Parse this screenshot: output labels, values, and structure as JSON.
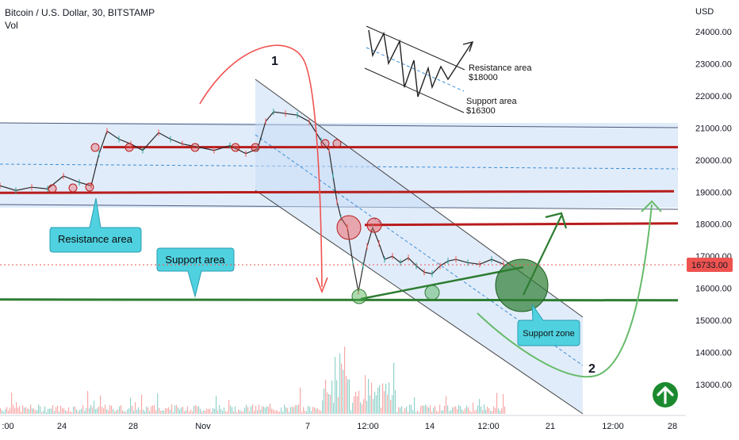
{
  "header": {
    "symbol_line": "Bitcoin / U.S. Dollar, 30, BITSTAMP",
    "volume_label": "Vol"
  },
  "chart_data": {
    "type": "line",
    "title": "Bitcoin / U.S. Dollar, 30, BITSTAMP",
    "currency_label": "USD",
    "ylim": [
      12300,
      24700
    ],
    "y_ticks": [
      13000,
      14000,
      15000,
      16000,
      17000,
      18000,
      19000,
      20000,
      21000,
      22000,
      23000,
      24000
    ],
    "x_tick_labels": [
      ":00",
      "24",
      "28",
      "Nov",
      "7",
      "12:00",
      "14",
      "12:00",
      "21",
      "12:00",
      "28"
    ],
    "current_price": 16733.0,
    "current_price_label": "16733.00",
    "price_path": [
      [
        0,
        19200
      ],
      [
        20,
        19050
      ],
      [
        40,
        19150
      ],
      [
        60,
        19100
      ],
      [
        80,
        19500
      ],
      [
        100,
        19300
      ],
      [
        115,
        19200
      ],
      [
        125,
        20200
      ],
      [
        135,
        20900
      ],
      [
        150,
        20650
      ],
      [
        165,
        20500
      ],
      [
        180,
        20300
      ],
      [
        200,
        20850
      ],
      [
        215,
        20650
      ],
      [
        230,
        20500
      ],
      [
        250,
        20400
      ],
      [
        270,
        20300
      ],
      [
        290,
        20450
      ],
      [
        310,
        20200
      ],
      [
        325,
        20350
      ],
      [
        335,
        21200
      ],
      [
        345,
        21500
      ],
      [
        360,
        21450
      ],
      [
        375,
        21400
      ],
      [
        390,
        21200
      ],
      [
        405,
        20600
      ],
      [
        415,
        20300
      ],
      [
        420,
        19500
      ],
      [
        425,
        18700
      ],
      [
        430,
        18200
      ],
      [
        438,
        17900
      ],
      [
        445,
        16800
      ],
      [
        452,
        15900
      ],
      [
        458,
        16700
      ],
      [
        463,
        17300
      ],
      [
        470,
        17900
      ],
      [
        478,
        17400
      ],
      [
        485,
        16900
      ],
      [
        495,
        17000
      ],
      [
        505,
        16800
      ],
      [
        515,
        16950
      ],
      [
        525,
        16700
      ],
      [
        535,
        16500
      ],
      [
        545,
        16450
      ],
      [
        555,
        16700
      ],
      [
        565,
        16850
      ],
      [
        575,
        16900
      ],
      [
        590,
        16800
      ],
      [
        605,
        16750
      ],
      [
        620,
        16900
      ],
      [
        635,
        16750
      ]
    ],
    "annotations": {
      "resistance_label": "Resistance area",
      "support_label": "Support area",
      "support_zone_label": "Support zone",
      "mini_resistance": "Resistance area",
      "mini_resistance_price": "$18000",
      "mini_support": "Support area",
      "mini_support_price": "$16300",
      "arc_number_1": "1",
      "arc_number_2": "2"
    },
    "levels": {
      "resistance_upper": 20400,
      "resistance_mid": 19000,
      "resistance_lower": 18000,
      "support": 15650
    },
    "colors": {
      "candle_up": "#26a69a",
      "candle_down": "#ef5350",
      "channel_fill": "#c9dcf5",
      "resistance_line": "#b71c1c",
      "support_line": "#2e7d32",
      "callout_fill": "#4fd1e0",
      "arrow_red": "#ef5350",
      "arrow_green_dark": "#2e7d32",
      "arrow_green_light": "#66bb6a",
      "price_badge": "#ef5350"
    }
  }
}
